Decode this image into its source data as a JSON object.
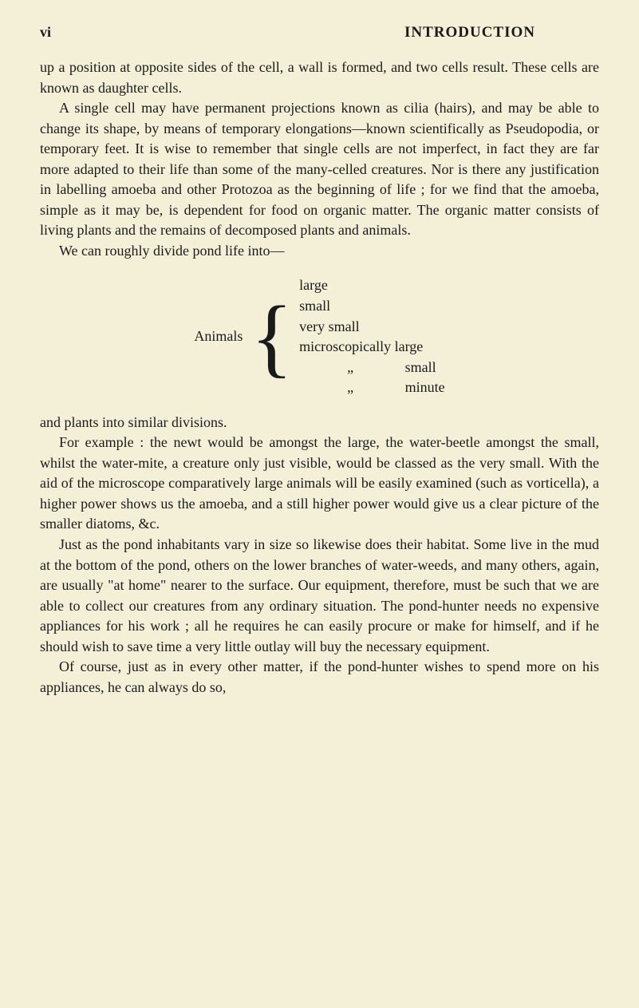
{
  "page": {
    "number": "vi",
    "title": "INTRODUCTION"
  },
  "paragraphs": {
    "p1": "up a position at opposite sides of the cell, a wall is formed, and two cells result. These cells are known as daughter cells.",
    "p2": "A single cell may have permanent projections known as cilia (hairs), and may be able to change its shape, by means of temporary elongations—known scientifically as Pseudopodia, or temporary feet. It is wise to remember that single cells are not imperfect, in fact they are far more adapted to their life than some of the many-celled creatures. Nor is there any justification in labelling amoeba and other Protozoa as the beginning of life ; for we find that the amoeba, simple as it may be, is dependent for food on organic matter. The organic matter consists of living plants and the remains of decomposed plants and animals.",
    "p3": "We can roughly divide pond life into—",
    "p4": "and plants into similar divisions.",
    "p5": "For example : the newt would be amongst the large, the water-beetle amongst the small, whilst the water-mite, a creature only just visible, would be classed as the very small. With the aid of the microscope comparatively large animals will be easily examined (such as vorticella), a higher power shows us the amoeba, and a still higher power would give us a clear picture of the smaller diatoms, &c.",
    "p6": "Just as the pond inhabitants vary in size so likewise does their habitat. Some live in the mud at the bottom of the pond, others on the lower branches of water-weeds, and many others, again, are usually \"at home\" nearer to the surface. Our equipment, therefore, must be such that we are able to collect our creatures from any ordinary situation. The pond-hunter needs no expensive appliances for his work ; all he requires he can easily procure or make for himself, and if he should wish to save time a very little outlay will buy the necessary equipment.",
    "p7": "Of course, just as in every other matter, if the pond-hunter wishes to spend more on his appliances, he can always do so,"
  },
  "animals": {
    "label": "Animals",
    "items": {
      "i1": "large",
      "i2": "small",
      "i3": "very small",
      "i4": "microscopically large",
      "i5a": "„",
      "i5b": "small",
      "i6a": "„",
      "i6b": "minute"
    }
  },
  "colors": {
    "background": "#f4f0d8",
    "text": "#1a1a1a"
  },
  "typography": {
    "body_fontsize": 18,
    "title_fontsize": 19,
    "font_family": "Georgia, serif"
  }
}
